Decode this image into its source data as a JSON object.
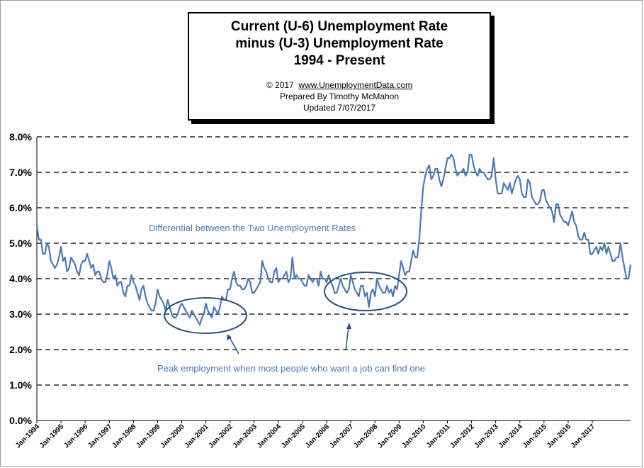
{
  "title_box": {
    "line1": "Current (U-6) Unemployment Rate",
    "line2": "minus (U-3) Unemployment Rate",
    "line3": "1994 - Present",
    "copyright": "© 2017",
    "site": "www.UnemploymentData.com",
    "prepared": "Prepared  By Timothy McMahon",
    "updated": "Updated  7/07/2017"
  },
  "annotations": {
    "series_label": "Differential between the Two Unemployment Rates",
    "peak_label": "Peak employment when most people who want a job can find one"
  },
  "colors": {
    "line": "#4a79b5",
    "grid": "#000000",
    "ellipse": "#2b4f7c"
  },
  "chart_data": {
    "type": "line",
    "title": "Current (U-6) Unemployment Rate minus (U-3) Unemployment Rate 1994 - Present",
    "xlabel": "",
    "ylabel": "",
    "ylim": [
      0,
      8
    ],
    "y_ticks": [
      "0.0%",
      "1.0%",
      "2.0%",
      "3.0%",
      "4.0%",
      "5.0%",
      "6.0%",
      "7.0%",
      "8.0%"
    ],
    "x_ticks": [
      "Jan-1994",
      "Jan-1995",
      "Jan-1996",
      "Jan-1997",
      "Jan-1998",
      "Jan-1999",
      "Jan-2000",
      "Jan-2001",
      "Jan-2002",
      "Jan-2003",
      "Jan-2004",
      "Jan-2005",
      "Jan-2006",
      "Jan-2007",
      "Jan-2008",
      "Jan-2009",
      "Jan-2010",
      "Jan-2011",
      "Jan-2012",
      "Jan-2013",
      "Jan-2014",
      "Jan-2015",
      "Jan-2016",
      "Jan-2017"
    ],
    "grid": true,
    "legend": "none",
    "series": [
      {
        "x_start": "Jan-1994",
        "x_end": "Jun-2017",
        "frequency": "monthly",
        "values": [
          5.5,
          5.1,
          5.1,
          4.7,
          4.7,
          5.0,
          4.9,
          4.5,
          4.4,
          4.3,
          4.4,
          4.6,
          4.9,
          4.5,
          4.6,
          4.2,
          4.3,
          4.6,
          4.5,
          4.4,
          4.2,
          4.1,
          4.4,
          4.5,
          4.5,
          4.7,
          4.5,
          4.3,
          4.4,
          4.1,
          4.2,
          4.2,
          4.0,
          3.9,
          3.9,
          4.1,
          4.5,
          4.3,
          4.0,
          4.1,
          3.8,
          3.9,
          3.9,
          3.6,
          3.5,
          3.8,
          3.8,
          4.1,
          3.9,
          3.8,
          3.6,
          3.4,
          3.7,
          3.8,
          3.5,
          3.3,
          3.2,
          3.1,
          3.1,
          3.3,
          3.7,
          3.5,
          3.4,
          3.3,
          3.1,
          3.4,
          3.2,
          3.0,
          2.9,
          2.9,
          3.0,
          3.2,
          3.3,
          3.2,
          3.1,
          3.0,
          2.9,
          3.1,
          3.0,
          2.9,
          2.8,
          2.7,
          2.9,
          3.0,
          3.3,
          3.1,
          3.0,
          2.9,
          3.2,
          3.1,
          3.0,
          3.2,
          3.5,
          3.4,
          3.4,
          3.7,
          3.7,
          4.0,
          4.2,
          3.9,
          3.8,
          3.8,
          3.7,
          3.7,
          3.8,
          4.0,
          3.9,
          3.6,
          3.6,
          3.7,
          3.8,
          3.9,
          4.5,
          4.3,
          4.2,
          4.0,
          3.9,
          3.9,
          4.2,
          4.3,
          3.9,
          4.0,
          4.0,
          4.1,
          4.2,
          3.9,
          4.0,
          4.6,
          4.0,
          4.1,
          4.0,
          4.0,
          3.9,
          3.8,
          3.8,
          4.1,
          4.0,
          3.9,
          4.0,
          4.0,
          3.8,
          4.2,
          4.0,
          4.0,
          3.9,
          4.1,
          3.9,
          3.8,
          3.6,
          3.6,
          3.8,
          4.0,
          3.8,
          3.7,
          3.6,
          3.7,
          4.1,
          3.9,
          3.7,
          3.6,
          3.5,
          3.8,
          3.8,
          3.5,
          3.6,
          3.2,
          3.6,
          3.7,
          3.5,
          4.0,
          3.8,
          3.7,
          3.6,
          3.6,
          3.8,
          3.6,
          3.7,
          3.5,
          3.8,
          3.7,
          4.1,
          4.5,
          4.3,
          4.1,
          4.2,
          4.2,
          4.5,
          4.8,
          4.6,
          4.6,
          5.1,
          5.9,
          6.6,
          6.9,
          7.1,
          7.2,
          6.8,
          6.9,
          7.1,
          7.1,
          6.8,
          6.6,
          6.8,
          7.1,
          7.4,
          7.4,
          7.5,
          7.4,
          7.1,
          6.9,
          7.0,
          7.0,
          7.1,
          6.9,
          7.0,
          7.5,
          7.5,
          7.2,
          7.0,
          6.9,
          7.1,
          7.0,
          7.0,
          6.9,
          6.8,
          6.8,
          6.9,
          7.4,
          6.8,
          6.4,
          6.4,
          6.4,
          6.7,
          6.6,
          6.5,
          6.7,
          6.4,
          6.6,
          6.8,
          6.9,
          6.8,
          6.4,
          6.3,
          6.3,
          6.8,
          6.7,
          6.3,
          6.2,
          6.1,
          6.1,
          6.2,
          6.5,
          6.5,
          6.2,
          6.1,
          6.0,
          5.9,
          5.6,
          6.1,
          6.1,
          5.8,
          5.7,
          5.6,
          5.6,
          5.5,
          5.7,
          5.9,
          5.6,
          5.5,
          5.2,
          5.1,
          5.1,
          5.3,
          5.1,
          5.1,
          4.7,
          4.7,
          4.8,
          4.9,
          4.7,
          4.9,
          4.8,
          5.0,
          4.7,
          4.9,
          4.7,
          4.5,
          4.5,
          4.6,
          4.6,
          5.0,
          4.6,
          4.3,
          4.0,
          4.0,
          4.4
        ]
      }
    ]
  }
}
